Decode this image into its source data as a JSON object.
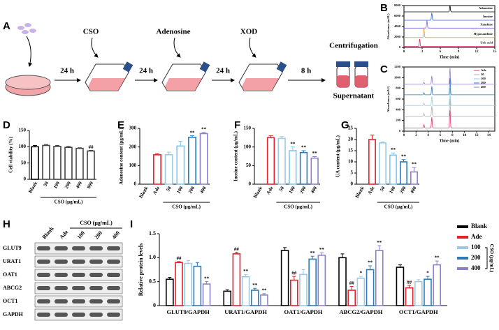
{
  "panel_labels": [
    "A",
    "B",
    "C",
    "D",
    "E",
    "F",
    "G",
    "H",
    "I"
  ],
  "workflow": {
    "labels": [
      "CSO",
      "Adenosine",
      "XOD",
      "Centrifugation",
      "Supernatant"
    ],
    "times": [
      "24 h",
      "24 h",
      "24 h",
      "8 h"
    ]
  },
  "chart_data": [
    {
      "type": "chromatogram",
      "xlabel": "Time (min)",
      "ylabel": "Absorbance (mAU)",
      "xlim": [
        0,
        15
      ],
      "xticks": [
        0,
        3,
        6,
        9,
        12,
        15
      ],
      "ylim": [
        0,
        8000
      ],
      "yticks": [
        0,
        2000,
        4000,
        6000,
        8000
      ],
      "legend": "inline",
      "series": [
        {
          "name": "Adenosine",
          "color": "#000000",
          "baseline": 6800,
          "peaks": [
            [
              7.6,
              1200
            ]
          ]
        },
        {
          "name": "Inosine",
          "color": "#3a5fcd",
          "baseline": 5200,
          "peaks": [
            [
              4.6,
              1400
            ]
          ]
        },
        {
          "name": "Xanthine",
          "color": "#7b68ee",
          "baseline": 3700,
          "peaks": [
            [
              3.8,
              1500
            ]
          ]
        },
        {
          "name": "Hypoxanthine",
          "color": "#f0a030",
          "baseline": 1900,
          "peaks": [
            [
              3.3,
              1800
            ]
          ]
        },
        {
          "name": "Uric acid",
          "color": "#e0207a",
          "baseline": 200,
          "peaks": [
            [
              2.6,
              1400
            ]
          ]
        }
      ]
    },
    {
      "type": "chromatogram",
      "xlabel": "Time (min)",
      "ylabel": "Absorbance (mAU)",
      "xlim": [
        0,
        15
      ],
      "xticks": [
        0,
        2,
        4,
        6,
        8,
        10,
        12,
        14
      ],
      "ylim": [
        0,
        1200
      ],
      "yticks": [
        0,
        200,
        400,
        600,
        800,
        1000,
        1200
      ],
      "legend": "upper right",
      "series": [
        {
          "name": "Ade",
          "color": "#e8306a",
          "baseline": 60,
          "peaks": [
            [
              3.3,
              60
            ],
            [
              4.6,
              200
            ],
            [
              7.6,
              330
            ]
          ]
        },
        {
          "name": "50",
          "color": "#b0b0b0",
          "baseline": 280,
          "peaks": [
            [
              3.3,
              50
            ],
            [
              4.6,
              190
            ],
            [
              7.6,
              320
            ]
          ]
        },
        {
          "name": "100",
          "color": "#9ecae1",
          "baseline": 480,
          "peaks": [
            [
              3.3,
              45
            ],
            [
              4.6,
              170
            ],
            [
              7.6,
              320
            ]
          ]
        },
        {
          "name": "200",
          "color": "#2b7bba",
          "baseline": 680,
          "peaks": [
            [
              3.3,
              40
            ],
            [
              4.6,
              160
            ],
            [
              7.6,
              310
            ]
          ]
        },
        {
          "name": "400",
          "color": "#8b80c8",
          "baseline": 880,
          "peaks": [
            [
              3.3,
              35
            ],
            [
              4.6,
              150
            ],
            [
              7.6,
              300
            ]
          ]
        }
      ]
    },
    {
      "type": "bar",
      "ylabel": "Cell viability (%)",
      "xlabel": "CSO (μg/mL)",
      "categories": [
        "Blank",
        "50",
        "100",
        "200",
        "400",
        "800"
      ],
      "values": [
        100,
        104,
        101,
        98,
        95,
        87
      ],
      "errors": [
        4,
        3,
        3,
        3,
        2,
        2
      ],
      "annotations": [
        null,
        null,
        null,
        null,
        null,
        "##"
      ],
      "colors": [
        "#000000",
        "#444444",
        "#444444",
        "#444444",
        "#444444",
        "#444444"
      ],
      "ylim": [
        0,
        150
      ],
      "yticks": [
        0,
        50,
        100,
        150
      ]
    },
    {
      "type": "bar",
      "ylabel": "Adenosine content (μg/mL)",
      "xlabel": "CSO (μg/mL)",
      "categories": [
        "Blank",
        "Ade",
        "50",
        "100",
        "200",
        "400"
      ],
      "values": [
        0,
        158,
        158,
        205,
        252,
        272
      ],
      "errors": [
        0,
        6,
        14,
        25,
        8,
        6
      ],
      "annotations": [
        null,
        null,
        null,
        null,
        "**",
        "**"
      ],
      "colors": [
        "#000000",
        "#e8202a",
        "#9ecae1",
        "#7ec8f0",
        "#2b7bba",
        "#8b80c8"
      ],
      "ylim": [
        0,
        300
      ],
      "yticks": [
        0,
        100,
        200,
        300
      ]
    },
    {
      "type": "bar",
      "ylabel": "Inosine content (μg/mL)",
      "xlabel": "CSO (μg/mL)",
      "categories": [
        "Blank",
        "Ade",
        "50",
        "100",
        "200",
        "400"
      ],
      "values": [
        0,
        125,
        123,
        90,
        85,
        70
      ],
      "errors": [
        0,
        5,
        5,
        10,
        5,
        4
      ],
      "annotations": [
        null,
        null,
        null,
        "**",
        "**",
        "**"
      ],
      "colors": [
        "#000000",
        "#e8202a",
        "#9ecae1",
        "#7ec8f0",
        "#2b7bba",
        "#8b80c8"
      ],
      "ylim": [
        0,
        150
      ],
      "yticks": [
        0,
        50,
        100,
        150
      ]
    },
    {
      "type": "bar",
      "ylabel": "UA content (μg/mL)",
      "xlabel": "CSO (μg/mL)",
      "categories": [
        "Blank",
        "Ade",
        "50",
        "100",
        "200",
        "400"
      ],
      "values": [
        0,
        20,
        18.5,
        13,
        10,
        5.5
      ],
      "errors": [
        0,
        2,
        0.5,
        1,
        1,
        2
      ],
      "annotations": [
        null,
        null,
        null,
        "**",
        "**",
        "**"
      ],
      "colors": [
        "#000000",
        "#e8202a",
        "#9ecae1",
        "#7ec8f0",
        "#2b7bba",
        "#8b80c8"
      ],
      "ylim": [
        0,
        25
      ],
      "yticks": [
        0,
        5,
        10,
        15,
        20,
        25
      ]
    },
    {
      "type": "grouped_bar",
      "ylabel": "Relative protein levels",
      "legend_title": "CSO (μg/mL)",
      "legend": "right",
      "categories": [
        "GLUT9/GAPDH",
        "URAT1/GAPDH",
        "OAT1/GAPDH",
        "ABCG2/GAPDH",
        "OCT1/GAPDH"
      ],
      "ylim": [
        0,
        1.5
      ],
      "yticks": [
        0,
        0.5,
        {
          "value": 1,
          "label": "1.0"
        },
        1.5
      ],
      "series": [
        {
          "name": "Blank",
          "color": "#000000",
          "values": [
            0.55,
            0.3,
            1.15,
            1.0,
            0.8
          ],
          "errors": [
            0.04,
            0.03,
            0.06,
            0.08,
            0.05
          ],
          "annotations": [
            null,
            null,
            null,
            null,
            null
          ]
        },
        {
          "name": "Ade",
          "color": "#e8202a",
          "values": [
            0.9,
            1.08,
            0.53,
            0.32,
            0.37
          ],
          "errors": [
            0.02,
            0.03,
            0.08,
            0.08,
            0.05
          ],
          "annotations": [
            "##",
            "##",
            "##",
            "##",
            "##"
          ]
        },
        {
          "name": "100",
          "color": "#9ecae1",
          "values": [
            0.88,
            0.6,
            0.65,
            0.57,
            0.5
          ],
          "errors": [
            0.06,
            0.05,
            0.1,
            0.04,
            0.04
          ],
          "annotations": [
            null,
            "**",
            null,
            "*",
            null
          ]
        },
        {
          "name": "200",
          "color": "#2b7bba",
          "values": [
            0.82,
            0.32,
            0.97,
            0.75,
            0.55
          ],
          "errors": [
            0.08,
            0.04,
            0.06,
            0.08,
            0.06
          ],
          "annotations": [
            null,
            "**",
            "**",
            "**",
            "*"
          ]
        },
        {
          "name": "400",
          "color": "#8b80c8",
          "values": [
            0.45,
            0.22,
            1.05,
            1.15,
            0.85
          ],
          "errors": [
            0.05,
            0.03,
            0.05,
            0.1,
            0.08
          ],
          "annotations": [
            "**",
            "**",
            "**",
            "**",
            "**"
          ]
        }
      ]
    }
  ],
  "blot": {
    "header": "CSO (μg/mL)",
    "columns": [
      "Blank",
      "Ade",
      "100",
      "200",
      "400"
    ],
    "rows": [
      "GLUT9",
      "URAT1",
      "OAT1",
      "ABCG2",
      "OCT1",
      "GAPDH"
    ]
  }
}
